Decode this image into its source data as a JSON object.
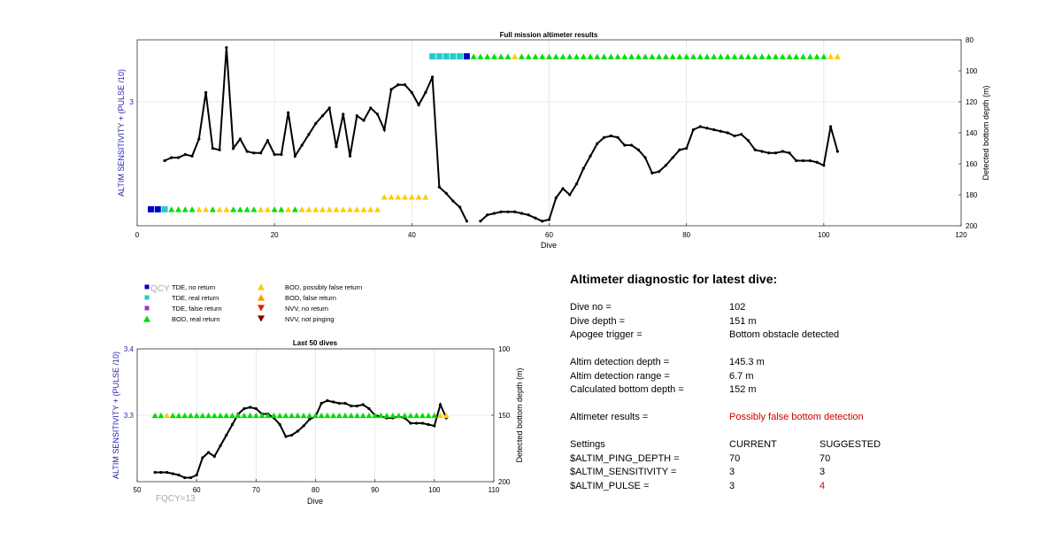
{
  "chart_data": [
    {
      "type": "line",
      "title": "Full mission altimeter results",
      "xlabel": "Dive",
      "ylabel_left": "ALTIM SENSITIVITY + (PULSE /10)",
      "ylabel_right": "Detected bottom depth (m)",
      "xlim": [
        0,
        120
      ],
      "xticks": [
        0,
        20,
        40,
        60,
        80,
        100,
        120
      ],
      "ylim_left": [
        1.8,
        3.6
      ],
      "yticks_left": [
        3
      ],
      "ylim_right_reversed": [
        80,
        200
      ],
      "yticks_right": [
        80,
        100,
        120,
        140,
        160,
        180,
        200
      ],
      "grid": true,
      "series": [
        {
          "axis": "right",
          "color": "#000000",
          "style": "line-with-dot-markers",
          "x": [
            4,
            5,
            6,
            7,
            8,
            9,
            10,
            11,
            12,
            13,
            14,
            15,
            16,
            17,
            18,
            19,
            20,
            21,
            22,
            23,
            24,
            25,
            26,
            27,
            28,
            29,
            30,
            31,
            32,
            33,
            34,
            35,
            36,
            37,
            38,
            39,
            40,
            41,
            42,
            43,
            44,
            45,
            46,
            47,
            48,
            49,
            50,
            51,
            52,
            53,
            54,
            55,
            56,
            57,
            58,
            59,
            60,
            61,
            62,
            63,
            64,
            65,
            66,
            67,
            68,
            69,
            70,
            71,
            72,
            73,
            74,
            75,
            76,
            77,
            78,
            79,
            80,
            81,
            82,
            83,
            84,
            85,
            86,
            87,
            88,
            89,
            90,
            91,
            92,
            93,
            94,
            95,
            96,
            97,
            98,
            99,
            100,
            101,
            102
          ],
          "y": [
            158,
            156,
            156,
            154,
            155,
            144,
            114,
            150,
            151,
            85,
            150,
            144,
            152,
            153,
            153,
            145,
            154,
            154,
            127,
            155,
            148,
            141,
            134,
            129,
            124,
            149,
            128,
            155,
            129,
            132,
            124,
            128,
            138,
            112,
            109,
            109,
            114,
            122,
            114,
            104,
            175,
            179,
            184,
            188,
            197,
            null,
            197,
            193,
            192,
            191,
            191,
            191,
            192,
            193,
            195,
            197,
            196,
            182,
            176,
            180,
            173,
            163,
            155,
            147,
            143,
            142,
            143,
            148,
            148,
            151,
            156,
            166,
            165,
            161,
            156,
            151,
            150,
            138,
            136,
            137,
            138,
            139,
            140,
            142,
            141,
            145,
            151,
            152,
            153,
            153,
            152,
            153,
            158,
            158,
            158,
            159,
            161,
            136,
            152
          ]
        },
        {
          "axis": "left",
          "name": "TDE, no return",
          "color": "#0000cc",
          "marker": "square",
          "x": [
            2,
            3,
            48
          ],
          "y": [
            1.96,
            1.96,
            3.44
          ]
        },
        {
          "axis": "left",
          "name": "TDE, real return",
          "color": "#22cccc",
          "marker": "square",
          "x": [
            4,
            43,
            44,
            45,
            46,
            47
          ],
          "y": [
            1.96,
            3.44,
            3.44,
            3.44,
            3.44,
            3.44
          ]
        },
        {
          "axis": "left",
          "name": "BOD, real return",
          "color": "#00dd00",
          "marker": "triangle",
          "x": [
            5,
            6,
            7,
            8,
            11,
            14,
            15,
            16,
            17,
            20,
            21,
            23,
            49,
            50,
            51,
            52,
            53,
            54,
            56,
            57,
            58,
            59,
            60,
            61,
            62,
            63,
            64,
            65,
            66,
            67,
            68,
            69,
            70,
            71,
            72,
            73,
            74,
            75,
            76,
            77,
            78,
            79,
            80,
            81,
            82,
            83,
            84,
            85,
            86,
            87,
            88,
            89,
            90,
            91,
            92,
            93,
            94,
            95,
            96,
            97,
            98,
            99,
            100
          ],
          "y": [
            1.96,
            1.96,
            1.96,
            1.96,
            1.96,
            1.96,
            1.96,
            1.96,
            1.96,
            1.96,
            1.96,
            1.96,
            3.44,
            3.44,
            3.44,
            3.44,
            3.44,
            3.44,
            3.44,
            3.44,
            3.44,
            3.44,
            3.44,
            3.44,
            3.44,
            3.44,
            3.44,
            3.44,
            3.44,
            3.44,
            3.44,
            3.44,
            3.44,
            3.44,
            3.44,
            3.44,
            3.44,
            3.44,
            3.44,
            3.44,
            3.44,
            3.44,
            3.44,
            3.44,
            3.44,
            3.44,
            3.44,
            3.44,
            3.44,
            3.44,
            3.44,
            3.44,
            3.44,
            3.44,
            3.44,
            3.44,
            3.44,
            3.44,
            3.44,
            3.44,
            3.44,
            3.44,
            3.44
          ]
        },
        {
          "axis": "left",
          "name": "BOD, possibly false return",
          "color": "#ffcc00",
          "marker": "triangle",
          "x": [
            9,
            10,
            12,
            13,
            18,
            19,
            22,
            24,
            25,
            26,
            27,
            28,
            29,
            30,
            31,
            32,
            33,
            34,
            35,
            36,
            37,
            38,
            39,
            40,
            41,
            42,
            55,
            101,
            102
          ],
          "y": [
            1.96,
            1.96,
            1.96,
            1.96,
            1.96,
            1.96,
            1.96,
            1.96,
            1.96,
            1.96,
            1.96,
            1.96,
            1.96,
            1.96,
            1.96,
            1.96,
            1.96,
            1.96,
            1.96,
            2.08,
            2.08,
            2.08,
            2.08,
            2.08,
            2.08,
            2.08,
            3.44,
            3.44,
            3.44
          ]
        }
      ]
    },
    {
      "type": "line",
      "title": "Last 50 dives",
      "xlabel": "Dive",
      "ylabel_left": "ALTIM SENSITIVITY + (PULSE /10)",
      "ylabel_right": "Detected bottom depth (m)",
      "xlim": [
        50,
        110
      ],
      "xticks": [
        50,
        60,
        70,
        80,
        90,
        100,
        110
      ],
      "ylim_left": [
        3.2,
        3.4
      ],
      "yticks_left": [
        "3.3",
        "3.4"
      ],
      "ylim_right_reversed": [
        100,
        200
      ],
      "yticks_right": [
        100,
        150,
        200
      ],
      "grid": true,
      "series": [
        {
          "axis": "right",
          "color": "#000000",
          "style": "line-with-dot-markers",
          "x": [
            53,
            54,
            55,
            56,
            57,
            58,
            59,
            60,
            61,
            62,
            63,
            64,
            65,
            66,
            67,
            68,
            69,
            70,
            71,
            72,
            73,
            74,
            75,
            76,
            77,
            78,
            79,
            80,
            81,
            82,
            83,
            84,
            85,
            86,
            87,
            88,
            89,
            90,
            91,
            92,
            93,
            94,
            95,
            96,
            97,
            98,
            99,
            100,
            101,
            102
          ],
          "y": [
            193,
            193,
            193,
            194,
            195,
            197,
            197,
            195,
            182,
            178,
            181,
            173,
            165,
            157,
            149,
            145,
            144,
            145,
            149,
            149,
            152,
            157,
            166,
            165,
            162,
            158,
            153,
            151,
            141,
            139,
            140,
            141,
            141,
            143,
            143,
            142,
            145,
            150,
            151,
            152,
            152,
            151,
            152,
            156,
            156,
            156,
            157,
            158,
            142,
            152
          ]
        },
        {
          "axis": "left",
          "name": "BOD, real return",
          "color": "#00dd00",
          "marker": "triangle",
          "x": [
            53,
            54,
            56,
            57,
            58,
            59,
            60,
            61,
            62,
            63,
            64,
            65,
            66,
            67,
            68,
            69,
            70,
            71,
            72,
            73,
            74,
            75,
            76,
            77,
            78,
            79,
            80,
            81,
            82,
            83,
            84,
            85,
            86,
            87,
            88,
            89,
            90,
            91,
            92,
            93,
            94,
            95,
            96,
            97,
            98,
            99,
            100
          ],
          "y": [
            3.3,
            3.3,
            3.3,
            3.3,
            3.3,
            3.3,
            3.3,
            3.3,
            3.3,
            3.3,
            3.3,
            3.3,
            3.3,
            3.3,
            3.3,
            3.3,
            3.3,
            3.3,
            3.3,
            3.3,
            3.3,
            3.3,
            3.3,
            3.3,
            3.3,
            3.3,
            3.3,
            3.3,
            3.3,
            3.3,
            3.3,
            3.3,
            3.3,
            3.3,
            3.3,
            3.3,
            3.3,
            3.3,
            3.3,
            3.3,
            3.3,
            3.3,
            3.3,
            3.3,
            3.3,
            3.3,
            3.3
          ]
        },
        {
          "axis": "left",
          "name": "BOD, possibly false return",
          "color": "#ffcc00",
          "marker": "triangle",
          "x": [
            55,
            101,
            102
          ],
          "y": [
            3.3,
            3.3,
            3.3
          ]
        }
      ]
    }
  ],
  "legend": [
    {
      "label": "TDE, no return",
      "color": "#0000cc",
      "marker": "square"
    },
    {
      "label": "TDE, real return",
      "color": "#22cccc",
      "marker": "square"
    },
    {
      "label": "TDE, false return",
      "color": "#9933cc",
      "marker": "square"
    },
    {
      "label": "BOD, real return",
      "color": "#00dd00",
      "marker": "triangle"
    },
    {
      "label": "BOD, possibly false return",
      "color": "#ffcc00",
      "marker": "triangle"
    },
    {
      "label": "BOD, false return",
      "color": "#ff9900",
      "marker": "triangle"
    },
    {
      "label": "NVV, no return",
      "color": "#dd2200",
      "marker": "triangle-down"
    },
    {
      "label": "NVV, not pinging",
      "color": "#880000",
      "marker": "triangle-down"
    }
  ],
  "overlays": {
    "qcy_text": "QCY",
    "fqcy_text": "FQCY=13"
  },
  "diagnostic": {
    "title": "Altimeter diagnostic for latest dive:",
    "dive_no_label": "Dive no =",
    "dive_no_value": "102",
    "dive_depth_label": "Dive depth =",
    "dive_depth_value": "151 m",
    "apogee_label": "Apogee trigger =",
    "apogee_value": "Bottom obstacle detected",
    "altim_det_depth_label": "Altim detection depth =",
    "altim_det_depth_value": "145.3 m",
    "altim_det_range_label": "Altim detection range =",
    "altim_det_range_value": "6.7 m",
    "calc_bottom_label": "Calculated bottom depth =",
    "calc_bottom_value": "152 m",
    "results_label": "Altimeter results =",
    "results_value": "Possibly false bottom detection",
    "settings_label": "Settings",
    "current_label": "CURRENT",
    "suggested_label": "SUGGESTED",
    "ping_depth_label": "$ALTIM_PING_DEPTH =",
    "ping_depth_current": "70",
    "ping_depth_suggested": "70",
    "sensitivity_label": "$ALTIM_SENSITIVITY =",
    "sensitivity_current": "3",
    "sensitivity_suggested": "3",
    "pulse_label": "$ALTIM_PULSE =",
    "pulse_current": "3",
    "pulse_suggested": "4",
    "alert_color": "#cc0000"
  }
}
